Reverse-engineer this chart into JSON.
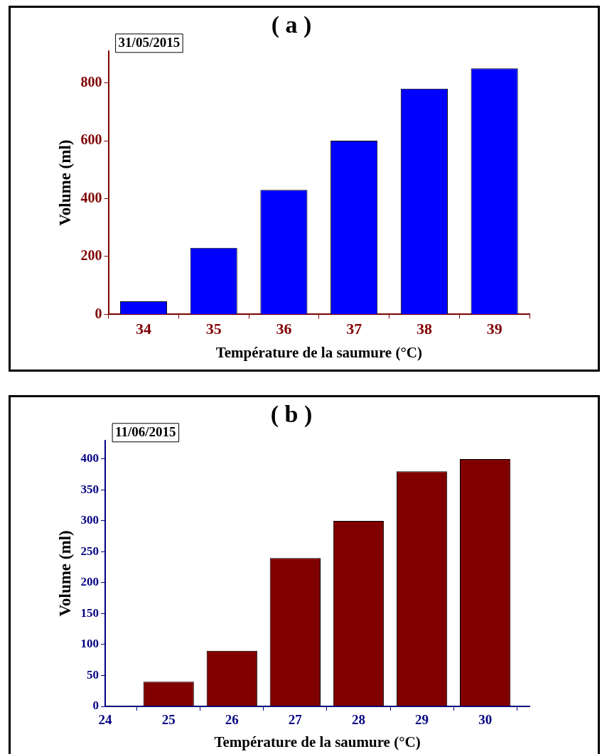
{
  "chart_data": [
    {
      "type": "bar",
      "title": "( a )",
      "annotations": [
        "31/05/2015"
      ],
      "xlabel": "Température de la saumure (°C)",
      "ylabel": "Volume (ml)",
      "categories": [
        "34",
        "35",
        "36",
        "37",
        "38",
        "39"
      ],
      "values": [
        45,
        230,
        430,
        600,
        780,
        850
      ],
      "color": "#0000ff",
      "ylim": [
        0,
        910
      ],
      "yticks": [
        0,
        200,
        400,
        600,
        800
      ]
    },
    {
      "type": "bar",
      "title": "( b )",
      "annotations": [
        "11/06/2015"
      ],
      "xlabel": "Température de la saumure (°C)",
      "ylabel": "Volume (ml)",
      "x": [
        25,
        26,
        27,
        28,
        29,
        30
      ],
      "values": [
        40,
        90,
        240,
        300,
        380,
        400
      ],
      "color": "#800000",
      "xlim": [
        24,
        30.7
      ],
      "xticks": [
        24,
        25,
        26,
        27,
        28,
        29,
        30
      ],
      "ylim": [
        0,
        430
      ],
      "yticks": [
        0,
        50,
        100,
        150,
        200,
        250,
        300,
        350,
        400
      ]
    }
  ]
}
